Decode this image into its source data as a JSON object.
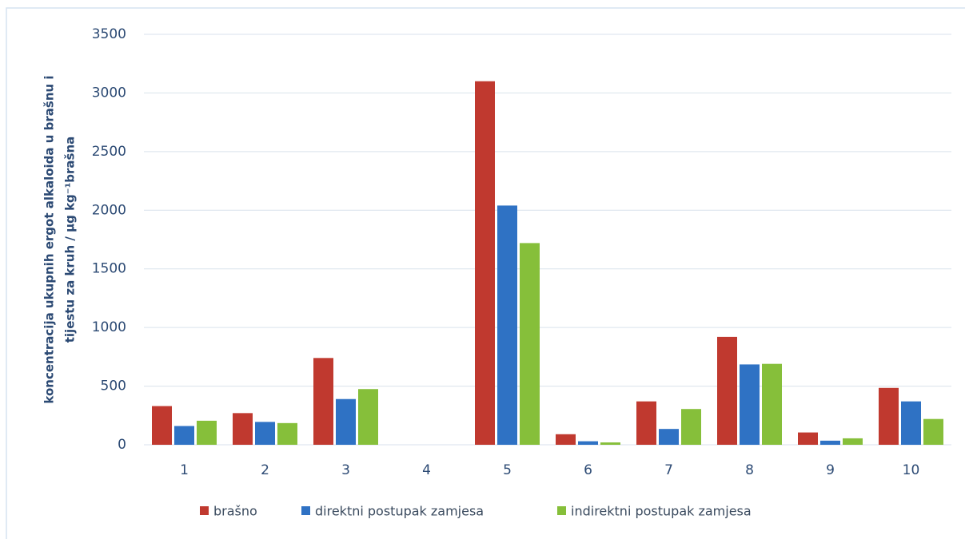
{
  "chart_data": {
    "type": "bar",
    "ylabel": [
      "koncentracija ukupnih ergot alkaloida u brašnu i",
      "tijestu za kruh / µg kg⁻¹brašna"
    ],
    "categories": [
      "1",
      "2",
      "3",
      "4",
      "5",
      "6",
      "7",
      "8",
      "9",
      "10"
    ],
    "series": [
      {
        "name": "brašno",
        "color": "#c0392f",
        "values": [
          330,
          270,
          740,
          0,
          3100,
          90,
          370,
          920,
          105,
          485
        ]
      },
      {
        "name": "direktni postupak zamjesa",
        "color": "#2f72c4",
        "values": [
          160,
          195,
          390,
          0,
          2040,
          30,
          135,
          685,
          35,
          370
        ]
      },
      {
        "name": "indirektni postupak zamjesa",
        "color": "#86bf3a",
        "values": [
          205,
          185,
          475,
          0,
          1720,
          20,
          305,
          690,
          55,
          220
        ]
      }
    ],
    "ylim": [
      0,
      3500
    ],
    "yticks": [
      0,
      500,
      1000,
      1500,
      2000,
      2500,
      3000,
      3500
    ],
    "grid": true,
    "legend": "bottom"
  }
}
